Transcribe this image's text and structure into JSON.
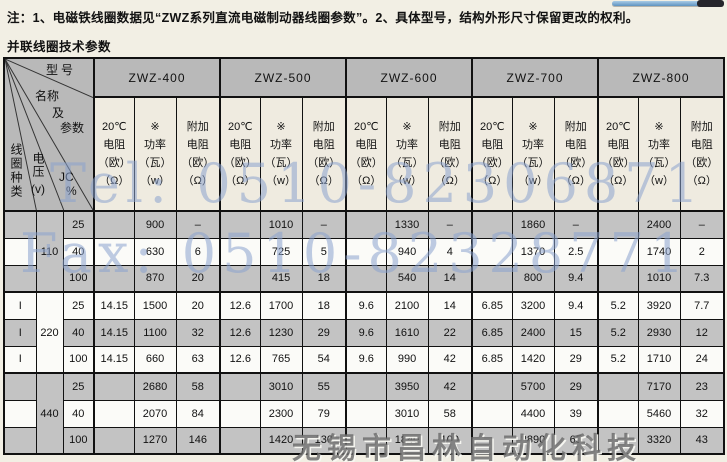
{
  "notes": {
    "line1": "注：1、电磁铁线圈数据见“ZWZ系列直流电磁制动器线圈参数”。2、具体型号，结构外形尺寸保留更改的权利。",
    "line2": "并联线圈技术参数"
  },
  "watermarks": {
    "tel": "Tel: 0510-82306871",
    "fax": "Fax: 0510-82328771",
    "company": "无锡市昌林自动化科技"
  },
  "table": {
    "corner": {
      "model_label": "型号",
      "name_label_1": "名称",
      "name_label_2": "及",
      "name_label_3": "参数",
      "coil_type_label": "线圈种类",
      "voltage_label": "电压",
      "voltage_unit": "(v)",
      "jc_label": "JC",
      "jc_unit": "%"
    },
    "models": [
      "ZWZ-400",
      "ZWZ-500",
      "ZWZ-600",
      "ZWZ-700",
      "ZWZ-800"
    ],
    "param_headers": [
      [
        "20℃",
        "电阻",
        "（欧）",
        "（Ω）"
      ],
      [
        "※",
        "功率",
        "（瓦）",
        "（w）"
      ],
      [
        "附加",
        "电阻",
        "（欧）",
        "（Ω）"
      ]
    ],
    "rows": [
      {
        "type": "",
        "voltage": "110",
        "jc": "25",
        "cells": [
          "",
          "900",
          "–",
          "",
          "1010",
          "–",
          "",
          "1330",
          "–",
          "",
          "1860",
          "–",
          "",
          "2400",
          "–"
        ]
      },
      {
        "type": "",
        "voltage": "",
        "jc": "40",
        "cells": [
          "",
          "630",
          "6",
          "",
          "725",
          "5",
          "",
          "940",
          "4",
          "",
          "1370",
          "2.5",
          "",
          "1740",
          "2"
        ]
      },
      {
        "type": "",
        "voltage": "",
        "jc": "100",
        "cells": [
          "",
          "870",
          "20",
          "",
          "415",
          "18",
          "",
          "540",
          "14",
          "",
          "800",
          "9.4",
          "",
          "1010",
          "7.3"
        ]
      },
      {
        "type": "I",
        "voltage": "220",
        "jc": "25",
        "cells": [
          "14.15",
          "1500",
          "20",
          "12.6",
          "1700",
          "18",
          "9.6",
          "2100",
          "14",
          "6.85",
          "3200",
          "9.4",
          "5.2",
          "3920",
          "7.7"
        ]
      },
      {
        "type": "I",
        "voltage": "",
        "jc": "40",
        "cells": [
          "14.15",
          "1100",
          "32",
          "12.6",
          "1230",
          "29",
          "9.6",
          "1610",
          "22",
          "6.85",
          "2400",
          "15",
          "5.2",
          "2930",
          "12"
        ]
      },
      {
        "type": "I",
        "voltage": "",
        "jc": "100",
        "cells": [
          "14.15",
          "660",
          "63",
          "12.6",
          "765",
          "54",
          "9.6",
          "990",
          "42",
          "6.85",
          "1420",
          "29",
          "5.2",
          "1710",
          "24"
        ]
      },
      {
        "type": "",
        "voltage": "440",
        "jc": "25",
        "cells": [
          "",
          "2680",
          "58",
          "",
          "3010",
          "55",
          "",
          "3950",
          "42",
          "",
          "5700",
          "29",
          "",
          "7170",
          "23"
        ]
      },
      {
        "type": "",
        "voltage": "",
        "jc": "40",
        "cells": [
          "",
          "2070",
          "84",
          "",
          "2300",
          "79",
          "",
          "3010",
          "58",
          "",
          "4400",
          "39",
          "",
          "5460",
          "32"
        ]
      },
      {
        "type": "",
        "voltage": "",
        "jc": "100",
        "cells": [
          "",
          "1270",
          "146",
          "",
          "1420",
          "130",
          "",
          "1840",
          "100",
          "",
          "2890",
          "65",
          "",
          "3320",
          "43"
        ]
      }
    ]
  }
}
